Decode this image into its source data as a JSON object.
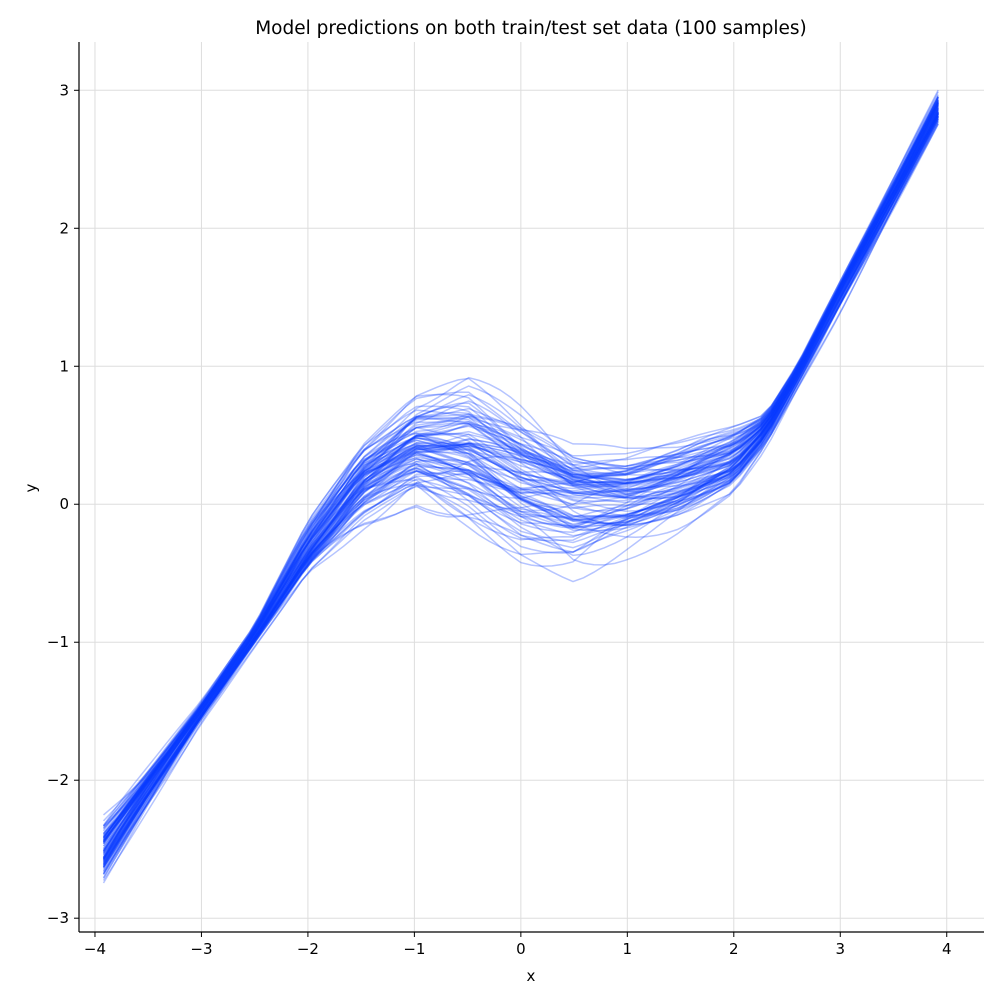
{
  "chart_data": {
    "type": "line",
    "title": "Model predictions on both train/test set data (100 samples)",
    "xlabel": "x",
    "ylabel": "y",
    "xlim": [
      -4.15,
      4.35
    ],
    "ylim": [
      -3.1,
      3.35
    ],
    "xticks": [
      -4,
      -3,
      -2,
      -1,
      0,
      1,
      2,
      3,
      4
    ],
    "xtick_labels": [
      "−4",
      "−3",
      "−2",
      "−1",
      "0",
      "1",
      "2",
      "3",
      "4"
    ],
    "yticks": [
      -3,
      -2,
      -1,
      0,
      1,
      2,
      3
    ],
    "ytick_labels": [
      "−3",
      "−2",
      "−1",
      "0",
      "1",
      "2",
      "3"
    ],
    "grid": true,
    "series_color": "#0a3cff",
    "series_alpha": 0.3,
    "sample_count": 100,
    "x": [
      -3.92,
      -3.5,
      -3.0,
      -2.5,
      -2.0,
      -1.5,
      -1.0,
      -0.5,
      0.0,
      0.5,
      1.0,
      1.5,
      2.0,
      2.3,
      2.6,
      3.0,
      3.5,
      3.92
    ],
    "mean_prediction": [
      -2.55,
      -2.05,
      -1.5,
      -0.95,
      -0.35,
      0.15,
      0.4,
      0.35,
      0.15,
      0.05,
      0.05,
      0.15,
      0.3,
      0.55,
      0.95,
      1.55,
      2.25,
      2.85
    ],
    "envelope_low": [
      -2.8,
      -2.25,
      -1.6,
      -1.05,
      -0.55,
      -0.3,
      -0.1,
      -0.35,
      -0.6,
      -0.7,
      -0.45,
      -0.25,
      0.0,
      0.35,
      0.8,
      1.35,
      2.1,
      2.72
    ],
    "envelope_high": [
      -2.17,
      -1.85,
      -1.4,
      -0.85,
      -0.05,
      0.55,
      0.95,
      1.1,
      0.85,
      0.55,
      0.5,
      0.55,
      0.65,
      0.7,
      1.05,
      1.65,
      2.4,
      3.04
    ]
  }
}
